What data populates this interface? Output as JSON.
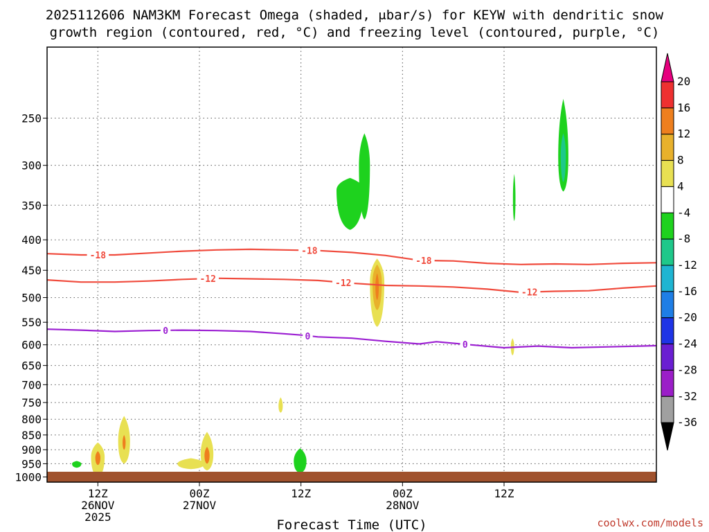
{
  "chart_data": {
    "type": "time-height cross-section",
    "title_lines": [
      "2025112606 NAM3KM Forecast Omega (shaded, μbar/s) for KEYW with dendritic snow",
      "growth region (contoured, red, °C) and freezing level (contoured, purple, °C)"
    ],
    "xlabel": "Forecast Time (UTC)",
    "credit": "coolwx.com/models",
    "x_hours_range": [
      6,
      78
    ],
    "y_pressure_range_hPa": [
      1020,
      190
    ],
    "y_ticks_hPa": [
      250,
      300,
      350,
      400,
      450,
      500,
      550,
      600,
      650,
      700,
      750,
      800,
      850,
      900,
      950,
      1000
    ],
    "x_ticks": [
      {
        "hour": 12,
        "lines": [
          "12Z",
          "26NOV",
          "2025"
        ]
      },
      {
        "hour": 24,
        "lines": [
          "00Z",
          "27NOV"
        ]
      },
      {
        "hour": 36,
        "lines": [
          "12Z"
        ]
      },
      {
        "hour": 48,
        "lines": [
          "00Z",
          "28NOV"
        ]
      },
      {
        "hour": 60,
        "lines": [
          "12Z"
        ]
      }
    ],
    "grid": true,
    "colorbar": {
      "labels": [
        "20",
        "16",
        "12",
        "8",
        "4",
        "-4",
        "-8",
        "-12",
        "-16",
        "-20",
        "-24",
        "-28",
        "-32",
        "-36"
      ],
      "colors": [
        "#e6007e",
        "#ee3030",
        "#ee7f1e",
        "#e8b12c",
        "#e8e052",
        "#ffffff",
        "#1ed21e",
        "#1ec88a",
        "#1eb5d2",
        "#1e7ee6",
        "#1e34e6",
        "#6a1ed2",
        "#9b1ec8",
        "#a0a0a0",
        "#000000"
      ]
    },
    "contours": [
      {
        "name": "dgz_-18",
        "label": "-18",
        "color": "#f04a3c",
        "points": [
          [
            6,
            422
          ],
          [
            10,
            424
          ],
          [
            14,
            424
          ],
          [
            18,
            421
          ],
          [
            22,
            418
          ],
          [
            26,
            416
          ],
          [
            30,
            415
          ],
          [
            34,
            416
          ],
          [
            38,
            417
          ],
          [
            42,
            420
          ],
          [
            46,
            425
          ],
          [
            50,
            433
          ],
          [
            54,
            434
          ],
          [
            58,
            438
          ],
          [
            62,
            440
          ],
          [
            66,
            439
          ],
          [
            70,
            440
          ],
          [
            74,
            438
          ],
          [
            78,
            437
          ]
        ],
        "label_hours": [
          12,
          37,
          50.5
        ]
      },
      {
        "name": "dgz_-12",
        "label": "-12",
        "color": "#f04a3c",
        "points": [
          [
            6,
            467
          ],
          [
            10,
            471
          ],
          [
            14,
            471
          ],
          [
            18,
            469
          ],
          [
            22,
            466
          ],
          [
            26,
            464
          ],
          [
            30,
            465
          ],
          [
            34,
            466
          ],
          [
            38,
            468
          ],
          [
            42,
            473
          ],
          [
            46,
            477
          ],
          [
            50,
            478
          ],
          [
            54,
            480
          ],
          [
            58,
            484
          ],
          [
            62,
            490
          ],
          [
            66,
            488
          ],
          [
            70,
            487
          ],
          [
            74,
            482
          ],
          [
            78,
            478
          ]
        ],
        "label_hours": [
          25,
          41,
          63
        ]
      },
      {
        "name": "freezing_level",
        "label": "0",
        "color": "#9b1ed2",
        "points": [
          [
            6,
            565
          ],
          [
            10,
            567
          ],
          [
            14,
            570
          ],
          [
            18,
            568
          ],
          [
            22,
            567
          ],
          [
            26,
            568
          ],
          [
            30,
            570
          ],
          [
            34,
            575
          ],
          [
            36,
            578
          ],
          [
            38,
            582
          ],
          [
            42,
            585
          ],
          [
            46,
            592
          ],
          [
            50,
            598
          ],
          [
            52,
            593
          ],
          [
            56,
            600
          ],
          [
            60,
            607
          ],
          [
            64,
            603
          ],
          [
            68,
            607
          ],
          [
            72,
            605
          ],
          [
            76,
            603
          ],
          [
            78,
            602
          ]
        ],
        "label_hours": [
          20,
          36.8,
          55.4
        ]
      }
    ],
    "shaded_regions": [
      {
        "color": "#1ed21e",
        "hour": 9.5,
        "p_center": 950,
        "half_width_h": 0.55,
        "p_top": 940,
        "p_bottom": 965
      },
      {
        "color": "#e8e052",
        "hour": 12,
        "p_center": 925,
        "half_width_h": 0.8,
        "p_top": 875,
        "p_bottom": 1000
      },
      {
        "color": "#ee7f1e",
        "hour": 12,
        "p_center": 928,
        "half_width_h": 0.3,
        "p_top": 905,
        "p_bottom": 955
      },
      {
        "color": "#e8e052",
        "hour": 15.1,
        "p_center": 870,
        "half_width_h": 0.7,
        "p_top": 790,
        "p_bottom": 950
      },
      {
        "color": "#ee7f1e",
        "hour": 15.1,
        "p_center": 875,
        "half_width_h": 0.18,
        "p_top": 850,
        "p_bottom": 900
      },
      {
        "color": "#e8e052",
        "hour": 23,
        "p_center": 950,
        "half_width_h": 1.6,
        "p_top": 930,
        "p_bottom": 970
      },
      {
        "color": "#e8e052",
        "hour": 24.9,
        "p_center": 915,
        "half_width_h": 0.75,
        "p_top": 840,
        "p_bottom": 975
      },
      {
        "color": "#ee7f1e",
        "hour": 24.9,
        "p_center": 920,
        "half_width_h": 0.3,
        "p_top": 890,
        "p_bottom": 950
      },
      {
        "color": "#e8e052",
        "hour": 33.6,
        "p_center": 760,
        "half_width_h": 0.25,
        "p_top": 735,
        "p_bottom": 780
      },
      {
        "color": "#1ed21e",
        "hour": 35.9,
        "p_center": 940,
        "half_width_h": 0.75,
        "p_top": 895,
        "p_bottom": 985
      },
      {
        "color": "#1ed21e",
        "hour": 41.8,
        "p_center": 330,
        "half_width_h": 1.6,
        "p_top": 315,
        "p_bottom": 385
      },
      {
        "color": "#1ed21e",
        "hour": 43.5,
        "p_center": 300,
        "half_width_h": 0.65,
        "p_top": 265,
        "p_bottom": 370
      },
      {
        "color": "#e8e052",
        "hour": 45,
        "p_center": 470,
        "half_width_h": 0.85,
        "p_top": 430,
        "p_bottom": 560
      },
      {
        "color": "#e8b12c",
        "hour": 45,
        "p_center": 470,
        "half_width_h": 0.55,
        "p_top": 440,
        "p_bottom": 525
      },
      {
        "color": "#ee7f1e",
        "hour": 45,
        "p_center": 478,
        "half_width_h": 0.2,
        "p_top": 455,
        "p_bottom": 505
      },
      {
        "color": "#1ed21e",
        "hour": 61.2,
        "p_center": 340,
        "half_width_h": 0.15,
        "p_top": 310,
        "p_bottom": 372
      },
      {
        "color": "#e8e052",
        "hour": 61,
        "p_center": 603,
        "half_width_h": 0.2,
        "p_top": 585,
        "p_bottom": 625
      },
      {
        "color": "#1ed21e",
        "hour": 67,
        "p_center": 290,
        "half_width_h": 0.6,
        "p_top": 232,
        "p_bottom": 332
      },
      {
        "color": "#1ec88a",
        "hour": 67,
        "p_center": 288,
        "half_width_h": 0.3,
        "p_top": 265,
        "p_bottom": 320
      }
    ],
    "ground_color": "#a0522d"
  }
}
